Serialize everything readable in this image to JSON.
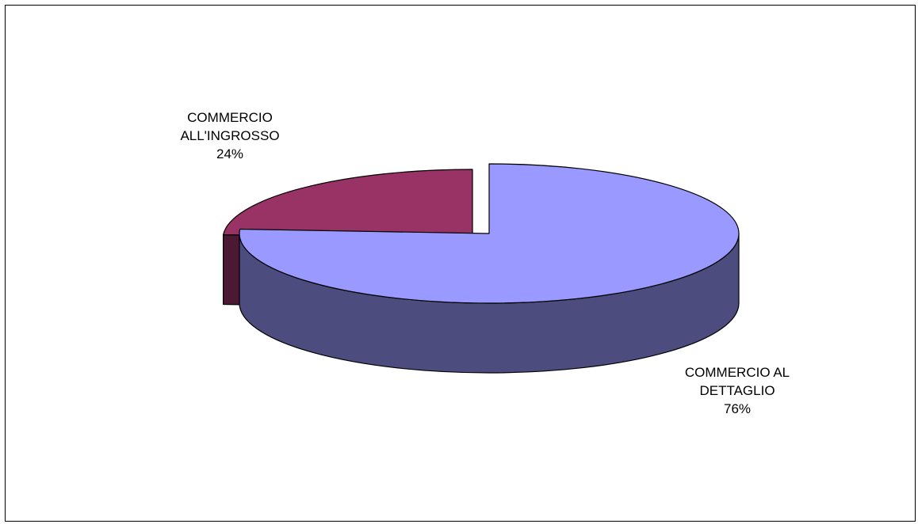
{
  "chart_data": {
    "type": "pie",
    "style": "3d-exploded",
    "slices": [
      {
        "label_lines": [
          "COMMERCIO AL",
          "DETTAGLIO"
        ],
        "value": 76,
        "percent_label": "76%",
        "top_color": "#9999ff",
        "side_color": "#4c4c7f"
      },
      {
        "label_lines": [
          "COMMERCIO",
          "ALL'INGROSSO"
        ],
        "value": 24,
        "percent_label": "24%",
        "top_color": "#993366",
        "side_color": "#4c1933"
      }
    ],
    "legend": "none"
  }
}
